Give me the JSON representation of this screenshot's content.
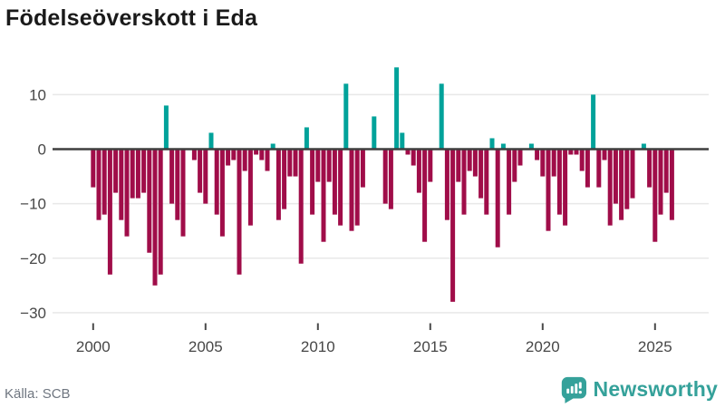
{
  "header": {
    "title": "Födelseöverskott i Eda"
  },
  "footer": {
    "source": "Källa: SCB",
    "brand": "Newsworthy",
    "brand_icon": "newsworthy-chart-bubble-icon"
  },
  "chart_data": {
    "type": "bar",
    "title": "Födelseöverskott i Eda",
    "x_unit": "quarterly",
    "x_range": [
      "2000 Q1",
      "2025 Q4"
    ],
    "values_by_year": {
      "2000": [
        -7,
        -13,
        -12,
        -23
      ],
      "2001": [
        -8,
        -13,
        -16,
        -9
      ],
      "2002": [
        -9,
        -8,
        -19,
        -25
      ],
      "2003": [
        -23,
        8,
        -10,
        -13
      ],
      "2004": [
        -16,
        0,
        -2,
        -8
      ],
      "2005": [
        -10,
        3,
        -12,
        -16
      ],
      "2006": [
        -3,
        -2,
        -23,
        -4
      ],
      "2007": [
        -14,
        -1,
        -2,
        -4
      ],
      "2008": [
        1,
        -13,
        -11,
        -5
      ],
      "2009": [
        -5,
        -21,
        4,
        -12
      ],
      "2010": [
        -6,
        -17,
        -6,
        -12
      ],
      "2011": [
        -14,
        12,
        -15,
        -14
      ],
      "2012": [
        -7,
        0,
        6,
        0
      ],
      "2013": [
        -10,
        -11,
        15,
        3
      ],
      "2014": [
        -1,
        -3,
        -8,
        -17
      ],
      "2015": [
        -6,
        0,
        12,
        -13
      ],
      "2016": [
        -28,
        -6,
        -12,
        -4
      ],
      "2017": [
        -5,
        -9,
        -12,
        2
      ],
      "2018": [
        -18,
        1,
        -12,
        -6
      ],
      "2019": [
        -3,
        0,
        1,
        -2
      ],
      "2020": [
        -5,
        -15,
        -5,
        -12
      ],
      "2021": [
        -14,
        -1,
        -1,
        -4
      ],
      "2022": [
        -7,
        10,
        -7,
        -2
      ],
      "2023": [
        -14,
        -10,
        -13,
        -11
      ],
      "2024": [
        -9,
        0,
        1,
        -7
      ],
      "2025": [
        -17,
        -12,
        -8,
        -13
      ]
    },
    "x_tick_labels": [
      "2000",
      "2005",
      "2010",
      "2015",
      "2020",
      "2025"
    ],
    "y_ticks": [
      10,
      0,
      -10,
      -20,
      -30
    ],
    "y_tick_labels": [
      "10",
      "0",
      "−10",
      "−20",
      "−30"
    ],
    "ylim": [
      -33,
      16
    ],
    "grid": "horizontal-only",
    "legend": "none",
    "colors": {
      "positive_bar": "#00a29a",
      "negative_bar": "#a00d49",
      "zero_line": "#3f3f3f",
      "gridline": "#e8e8e8",
      "axis_text": "#474747",
      "title_text": "#1a1a1a",
      "source_text": "#6f7680",
      "brand_teal": "#35a19a"
    }
  }
}
